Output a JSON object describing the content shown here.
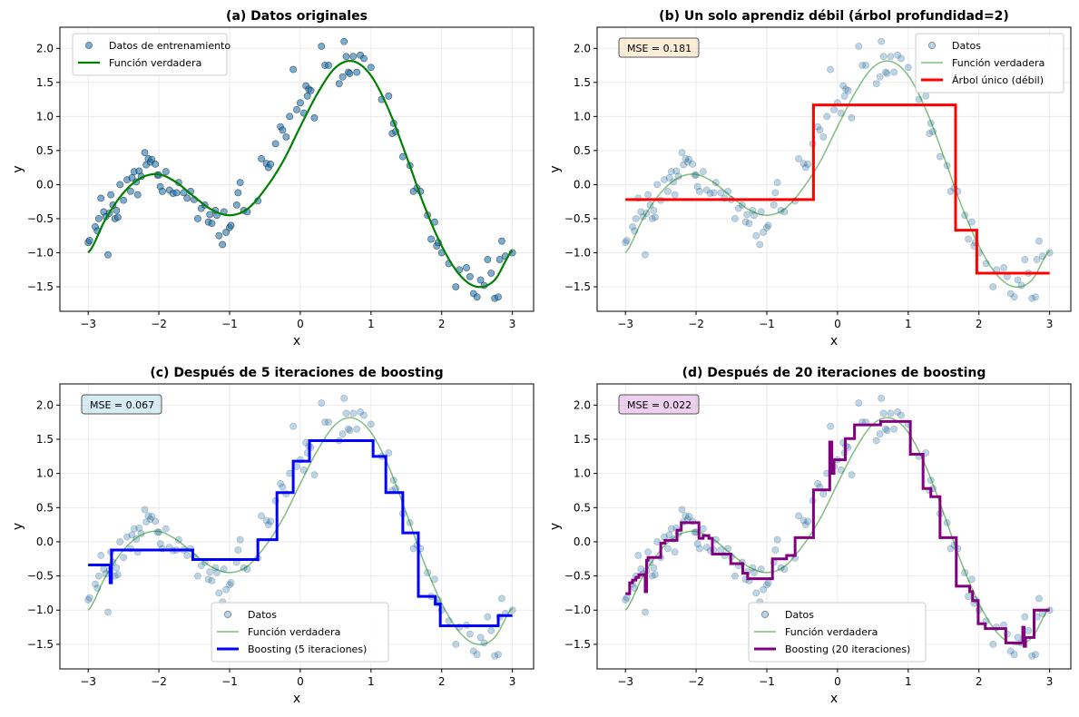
{
  "chart_data": [
    {
      "type": "line",
      "title": "(a) Datos originales",
      "xlabel": "x",
      "ylabel": "y",
      "xlim": [
        -3.4,
        3.3
      ],
      "ylim": [
        -1.86,
        2.31
      ],
      "xticks": [
        -3,
        -2,
        -1,
        0,
        1,
        2,
        3
      ],
      "yticks": [
        -1.5,
        -1.0,
        -0.5,
        0.0,
        0.5,
        1.0,
        1.5,
        2.0
      ],
      "grid": true,
      "legend": {
        "placement": "upper-left",
        "entries": [
          "Datos de entrenamiento",
          "Función verdadera"
        ]
      },
      "scatter_style": "strong",
      "true_style": "strong",
      "step": null,
      "annotation": null
    },
    {
      "type": "line",
      "title": "(b) Un solo aprendiz débil (árbol profundidad=2)",
      "xlabel": "x",
      "ylabel": "y",
      "xlim": [
        -3.4,
        3.3
      ],
      "ylim": [
        -1.86,
        2.31
      ],
      "xticks": [
        -3,
        -2,
        -1,
        0,
        1,
        2,
        3
      ],
      "yticks": [
        -1.5,
        -1.0,
        -0.5,
        0.0,
        0.5,
        1.0,
        1.5,
        2.0
      ],
      "grid": true,
      "legend": {
        "placement": "upper-right",
        "entries": [
          "Datos",
          "Función verdadera",
          "Árbol único (débil)"
        ]
      },
      "scatter_style": "light",
      "true_style": "light",
      "step": {
        "color": "#ff0000",
        "breaks": [
          -3,
          -0.34,
          1.67,
          1.97,
          3
        ],
        "values": [
          -0.22,
          1.17,
          -0.67,
          -1.3
        ]
      },
      "annotation": {
        "text": "MSE = 0.181",
        "color": "#f5deb3"
      }
    },
    {
      "type": "line",
      "title": "(c) Después de 5 iteraciones de boosting",
      "xlabel": "x",
      "ylabel": "y",
      "xlim": [
        -3.4,
        3.3
      ],
      "ylim": [
        -1.86,
        2.31
      ],
      "xticks": [
        -3,
        -2,
        -1,
        0,
        1,
        2,
        3
      ],
      "yticks": [
        -1.5,
        -1.0,
        -0.5,
        0.0,
        0.5,
        1.0,
        1.5,
        2.0
      ],
      "grid": true,
      "legend": {
        "placement": "lower-center",
        "entries": [
          "Datos",
          "Función verdadera",
          "Boosting (5 iteraciones)"
        ]
      },
      "scatter_style": "light",
      "true_style": "light",
      "step": {
        "color": "#0000ff",
        "breaks": [
          -3,
          -2.69,
          -2.67,
          -1.52,
          -0.6,
          -0.33,
          -0.1,
          0.13,
          1.03,
          1.21,
          1.45,
          1.67,
          1.91,
          1.98,
          2.8,
          3
        ],
        "values": [
          -0.34,
          -0.6,
          -0.12,
          -0.26,
          0.03,
          0.72,
          1.18,
          1.48,
          1.25,
          0.72,
          0.13,
          -0.8,
          -0.91,
          -1.23,
          -1.08
        ]
      },
      "annotation": {
        "text": "MSE = 0.067",
        "color": "#add8e6"
      }
    },
    {
      "type": "line",
      "title": "(d) Después de 20 iteraciones de boosting",
      "xlabel": "x",
      "ylabel": "y",
      "xlim": [
        -3.4,
        3.3
      ],
      "ylim": [
        -1.86,
        2.31
      ],
      "xticks": [
        -3,
        -2,
        -1,
        0,
        1,
        2,
        3
      ],
      "yticks": [
        -1.5,
        -1.0,
        -0.5,
        0.0,
        0.5,
        1.0,
        1.5,
        2.0
      ],
      "grid": true,
      "legend": {
        "placement": "lower-center",
        "entries": [
          "Datos",
          "Función verdadera",
          "Boosting (20 iteraciones)"
        ]
      },
      "scatter_style": "light",
      "true_style": "light",
      "step": {
        "color": "#800080",
        "breaks": [
          -3,
          -2.94,
          -2.9,
          -2.85,
          -2.81,
          -2.72,
          -2.7,
          -2.68,
          -2.5,
          -2.44,
          -2.27,
          -2.21,
          -1.96,
          -1.9,
          -1.82,
          -1.77,
          -1.51,
          -1.34,
          -1.27,
          -0.92,
          -0.72,
          -0.6,
          -0.34,
          -0.11,
          -0.08,
          -0.05,
          0.11,
          0.24,
          0.61,
          1.03,
          1.21,
          1.32,
          1.45,
          1.68,
          1.87,
          1.91,
          1.99,
          2.09,
          2.38,
          2.62,
          2.64,
          2.66,
          2.78,
          3
        ],
        "values": [
          -0.76,
          -0.6,
          -0.56,
          -0.52,
          -0.48,
          -0.73,
          -0.27,
          -0.23,
          -0.02,
          0.02,
          0.17,
          0.28,
          0.05,
          0.09,
          0.05,
          -0.18,
          -0.32,
          -0.46,
          -0.54,
          -0.25,
          -0.2,
          0.06,
          0.76,
          1.46,
          1.0,
          1.2,
          1.51,
          1.71,
          1.76,
          1.28,
          0.78,
          0.66,
          0.06,
          -0.65,
          -0.73,
          -0.86,
          -1.2,
          -1.27,
          -1.48,
          -1.25,
          -1.53,
          -1.4,
          -1.0
        ]
      },
      "annotation": {
        "text": "MSE = 0.022",
        "color": "#dda0dd"
      }
    }
  ],
  "true_function": {
    "color": "#008000",
    "x": [
      -3,
      -2.75,
      -2.5,
      -2.25,
      -2,
      -1.75,
      -1.5,
      -1.25,
      -1,
      -0.75,
      -0.5,
      -0.25,
      0,
      0.25,
      0.5,
      0.75,
      1,
      1.25,
      1.5,
      1.75,
      2,
      2.25,
      2.5,
      2.75,
      3
    ],
    "y": [
      -1.0,
      -0.5,
      -0.12,
      0.1,
      0.15,
      0.03,
      -0.18,
      -0.37,
      -0.45,
      -0.36,
      -0.07,
      0.33,
      0.85,
      1.35,
      1.72,
      1.81,
      1.6,
      1.1,
      0.42,
      -0.3,
      -0.9,
      -1.32,
      -1.5,
      -1.4,
      -0.97
    ]
  },
  "scatter": {
    "color": "#1f77b4",
    "x": [
      -3.0,
      -2.98,
      -2.9,
      -2.87,
      -2.85,
      -2.82,
      -2.78,
      -2.75,
      -2.72,
      -2.7,
      -2.68,
      -2.65,
      -2.62,
      -2.6,
      -2.58,
      -2.55,
      -2.5,
      -2.45,
      -2.4,
      -2.38,
      -2.35,
      -2.32,
      -2.3,
      -2.28,
      -2.25,
      -2.2,
      -2.18,
      -2.15,
      -2.12,
      -2.1,
      -2.05,
      -2.02,
      -2.0,
      -1.98,
      -1.95,
      -1.9,
      -1.85,
      -1.8,
      -1.75,
      -1.72,
      -1.65,
      -1.6,
      -1.55,
      -1.5,
      -1.45,
      -1.4,
      -1.35,
      -1.3,
      -1.28,
      -1.25,
      -1.2,
      -1.18,
      -1.15,
      -1.1,
      -1.08,
      -1.05,
      -1.0,
      -0.98,
      -0.9,
      -0.88,
      -0.85,
      -0.8,
      -0.75,
      -0.6,
      -0.55,
      -0.48,
      -0.45,
      -0.42,
      -0.35,
      -0.28,
      -0.25,
      -0.2,
      -0.15,
      -0.1,
      -0.05,
      0.0,
      0.05,
      0.08,
      0.1,
      0.12,
      0.15,
      0.2,
      0.3,
      0.35,
      0.4,
      0.55,
      0.6,
      0.62,
      0.65,
      0.68,
      0.7,
      0.75,
      0.8,
      0.85,
      0.9,
      1.0,
      1.15,
      1.25,
      1.3,
      1.32,
      1.35,
      1.45,
      1.55,
      1.6,
      1.65,
      1.7,
      1.8,
      1.85,
      1.9,
      1.93,
      1.95,
      2.0,
      2.1,
      2.2,
      2.25,
      2.35,
      2.4,
      2.45,
      2.5,
      2.55,
      2.6,
      2.65,
      2.7,
      2.75,
      2.8,
      2.82,
      2.85,
      2.9,
      3.0
    ],
    "y": [
      -0.85,
      -0.82,
      -0.62,
      -0.68,
      -0.5,
      -0.2,
      -0.4,
      -0.47,
      -1.03,
      -0.42,
      -0.15,
      -0.3,
      -0.5,
      -0.38,
      -0.48,
      0.0,
      -0.23,
      0.07,
      -0.1,
      0.1,
      0.19,
      0.04,
      -0.15,
      0.2,
      0.12,
      0.47,
      0.29,
      0.38,
      0.33,
      0.37,
      0.3,
      0.14,
      0.14,
      -0.03,
      -0.1,
      0.19,
      -0.08,
      -0.13,
      -0.12,
      0.03,
      -0.12,
      -0.2,
      -0.1,
      -0.22,
      -0.5,
      -0.35,
      -0.3,
      -0.55,
      -0.44,
      -0.57,
      -0.38,
      -0.45,
      -0.75,
      -0.88,
      -0.4,
      -0.7,
      -0.63,
      -0.6,
      -0.3,
      -0.12,
      0.03,
      -0.38,
      -0.4,
      -0.24,
      0.38,
      0.31,
      0.25,
      0.3,
      0.6,
      0.85,
      0.8,
      0.7,
      1.0,
      1.69,
      1.1,
      1.2,
      1.05,
      1.45,
      1.3,
      1.4,
      1.38,
      0.98,
      2.03,
      1.75,
      1.75,
      1.48,
      1.58,
      2.1,
      1.88,
      1.65,
      1.63,
      1.88,
      1.65,
      1.9,
      1.85,
      1.72,
      1.25,
      1.3,
      0.75,
      0.9,
      0.78,
      0.41,
      0.28,
      -0.1,
      -0.05,
      -0.1,
      -0.45,
      -0.8,
      -0.55,
      -0.9,
      -0.85,
      -1.0,
      -1.16,
      -1.5,
      -1.25,
      -1.22,
      -1.35,
      -1.6,
      -1.65,
      -1.4,
      -1.48,
      -1.1,
      -1.3,
      -1.67,
      -1.65,
      -1.1,
      -0.83,
      -1.05,
      -1.0
    ]
  }
}
